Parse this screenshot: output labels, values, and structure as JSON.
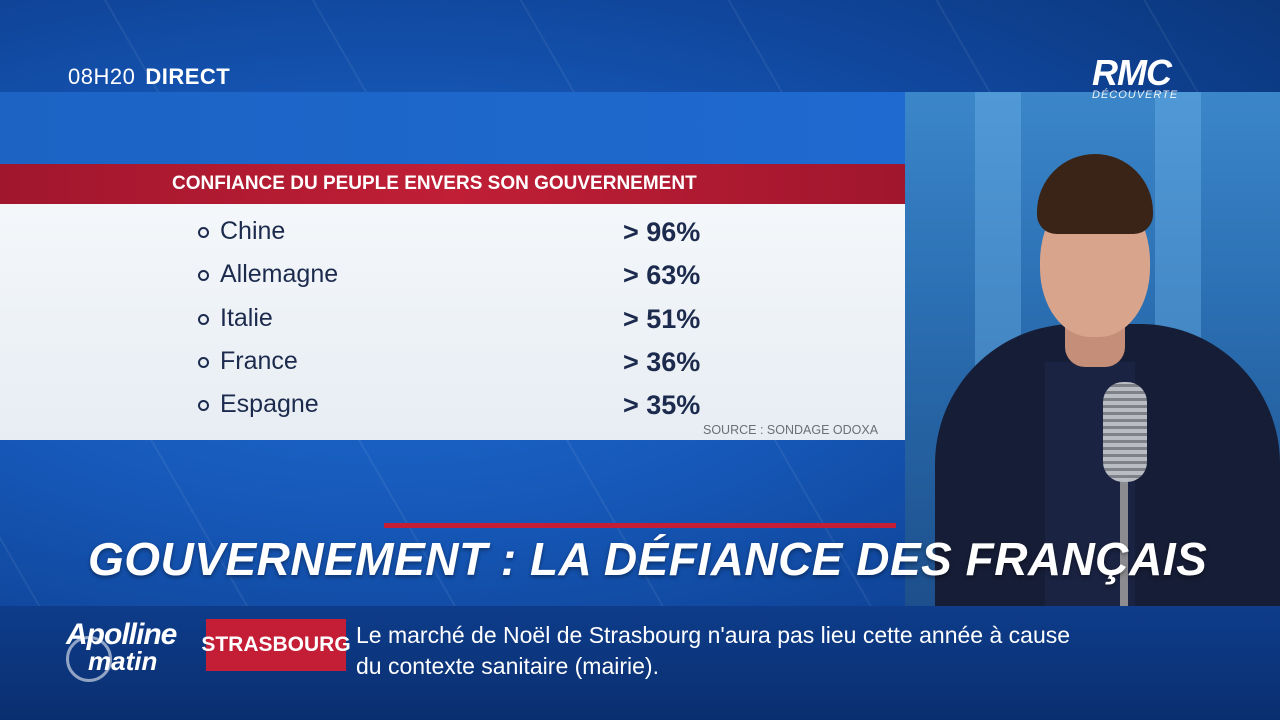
{
  "broadcast": {
    "time": "08H20",
    "status": "DIRECT",
    "channel": "RMC",
    "channel_sub": "DÉCOUVERTE"
  },
  "panel": {
    "title": "CONFIANCE DU PEUPLE ENVERS SON GOUVERNEMENT",
    "rows": [
      {
        "country": "Chine",
        "value": "> 96%"
      },
      {
        "country": "Allemagne",
        "value": "> 63%"
      },
      {
        "country": "Italie",
        "value": "> 51%"
      },
      {
        "country": "France",
        "value": "> 36%"
      },
      {
        "country": "Espagne",
        "value": "> 35%"
      }
    ],
    "source": "SOURCE : SONDAGE ODOXA"
  },
  "headline": "GOUVERNEMENT : LA DÉFIANCE DES FRANÇAIS",
  "ticker": {
    "show_line1": "Apolline",
    "show_line2": "matin",
    "tag": "STRASBOURG",
    "text_line1": "Le marché de Noël de Strasbourg n'aura pas lieu cette année à cause",
    "text_line2": "du contexte sanitaire (mairie)."
  }
}
